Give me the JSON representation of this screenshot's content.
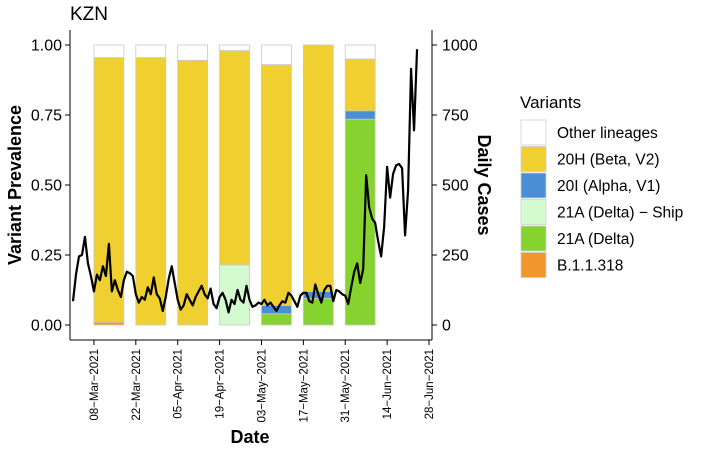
{
  "chart_data": {
    "type": "bar",
    "title": "KZN",
    "xlabel": "Date",
    "ylabel": "Variant Prevalence",
    "y2label": "Daily Cases",
    "ylim": [
      0,
      1
    ],
    "y2lim": [
      0,
      1000
    ],
    "yticks": [
      "0.00",
      "0.25",
      "0.50",
      "0.75",
      "1.00"
    ],
    "y2ticks": [
      "0",
      "250",
      "500",
      "750",
      "1000"
    ],
    "xlim": [
      "2021-02-28",
      "2021-06-29"
    ],
    "xticks": [
      "08−Mar−2021",
      "22−Mar−2021",
      "05−Apr−2021",
      "19−Apr−2021",
      "03−May−2021",
      "17−May−2021",
      "31−May−2021",
      "14−Jun−2021",
      "28−Jun−2021"
    ],
    "xtick_dates": [
      "2021-03-08",
      "2021-03-22",
      "2021-04-05",
      "2021-04-19",
      "2021-05-03",
      "2021-05-17",
      "2021-05-31",
      "2021-06-14",
      "2021-06-28"
    ],
    "legend_title": "Variants",
    "legend_position": "right",
    "series": [
      {
        "name": "Other lineages",
        "color": "#ffffff"
      },
      {
        "name": "20H (Beta, V2)",
        "color": "#f0cf30"
      },
      {
        "name": "20I (Alpha, V1)",
        "color": "#4a8fd6"
      },
      {
        "name": "21A (Delta) − Ship",
        "color": "#d4fbd0"
      },
      {
        "name": "21A (Delta)",
        "color": "#86d22f"
      },
      {
        "name": "B.1.1.318",
        "color": "#f2962e"
      }
    ],
    "bars": [
      {
        "week_start": "2021-03-08",
        "week_end": "2021-03-18",
        "segments": {
          "B.1.1.318": 0.01,
          "20H (Beta, V2)": 0.945,
          "Other lineages": 0.045
        }
      },
      {
        "week_start": "2021-03-22",
        "week_end": "2021-04-01",
        "segments": {
          "20H (Beta, V2)": 0.955,
          "Other lineages": 0.045
        }
      },
      {
        "week_start": "2021-04-05",
        "week_end": "2021-04-15",
        "segments": {
          "20H (Beta, V2)": 0.945,
          "Other lineages": 0.055
        }
      },
      {
        "week_start": "2021-04-19",
        "week_end": "2021-04-29",
        "segments": {
          "21A (Delta) − Ship": 0.215,
          "20H (Beta, V2)": 0.765,
          "Other lineages": 0.02
        }
      },
      {
        "week_start": "2021-05-03",
        "week_end": "2021-05-13",
        "segments": {
          "21A (Delta)": 0.04,
          "20I (Alpha, V1)": 0.03,
          "20H (Beta, V2)": 0.86,
          "Other lineages": 0.07
        }
      },
      {
        "week_start": "2021-05-17",
        "week_end": "2021-05-27",
        "segments": {
          "21A (Delta)": 0.095,
          "20I (Alpha, V1)": 0.025,
          "20H (Beta, V2)": 0.88
        }
      },
      {
        "week_start": "2021-05-31",
        "week_end": "2021-06-10",
        "segments": {
          "21A (Delta)": 0.735,
          "20I (Alpha, V1)": 0.03,
          "20H (Beta, V2)": 0.185,
          "Other lineages": 0.05
        }
      }
    ],
    "daily_cases": [
      [
        "2021-03-01",
        85
      ],
      [
        "2021-03-02",
        180
      ],
      [
        "2021-03-03",
        245
      ],
      [
        "2021-03-04",
        250
      ],
      [
        "2021-03-05",
        315
      ],
      [
        "2021-03-06",
        220
      ],
      [
        "2021-03-07",
        175
      ],
      [
        "2021-03-08",
        120
      ],
      [
        "2021-03-09",
        180
      ],
      [
        "2021-03-10",
        160
      ],
      [
        "2021-03-11",
        210
      ],
      [
        "2021-03-12",
        175
      ],
      [
        "2021-03-13",
        290
      ],
      [
        "2021-03-14",
        120
      ],
      [
        "2021-03-15",
        160
      ],
      [
        "2021-03-16",
        125
      ],
      [
        "2021-03-17",
        100
      ],
      [
        "2021-03-18",
        160
      ],
      [
        "2021-03-19",
        190
      ],
      [
        "2021-03-20",
        185
      ],
      [
        "2021-03-21",
        175
      ],
      [
        "2021-03-22",
        110
      ],
      [
        "2021-03-23",
        80
      ],
      [
        "2021-03-24",
        100
      ],
      [
        "2021-03-25",
        90
      ],
      [
        "2021-03-26",
        135
      ],
      [
        "2021-03-27",
        110
      ],
      [
        "2021-03-28",
        170
      ],
      [
        "2021-03-29",
        110
      ],
      [
        "2021-03-30",
        95
      ],
      [
        "2021-03-31",
        50
      ],
      [
        "2021-04-01",
        100
      ],
      [
        "2021-04-02",
        165
      ],
      [
        "2021-04-03",
        210
      ],
      [
        "2021-04-04",
        150
      ],
      [
        "2021-04-05",
        90
      ],
      [
        "2021-04-06",
        55
      ],
      [
        "2021-04-07",
        70
      ],
      [
        "2021-04-08",
        110
      ],
      [
        "2021-04-09",
        90
      ],
      [
        "2021-04-10",
        70
      ],
      [
        "2021-04-11",
        100
      ],
      [
        "2021-04-12",
        120
      ],
      [
        "2021-04-13",
        140
      ],
      [
        "2021-04-14",
        110
      ],
      [
        "2021-04-15",
        95
      ],
      [
        "2021-04-16",
        130
      ],
      [
        "2021-04-17",
        75
      ],
      [
        "2021-04-18",
        60
      ],
      [
        "2021-04-19",
        100
      ],
      [
        "2021-04-20",
        115
      ],
      [
        "2021-04-21",
        90
      ],
      [
        "2021-04-22",
        45
      ],
      [
        "2021-04-23",
        90
      ],
      [
        "2021-04-24",
        75
      ],
      [
        "2021-04-25",
        125
      ],
      [
        "2021-04-26",
        90
      ],
      [
        "2021-04-27",
        80
      ],
      [
        "2021-04-28",
        140
      ],
      [
        "2021-04-29",
        90
      ],
      [
        "2021-04-30",
        65
      ],
      [
        "2021-05-01",
        70
      ],
      [
        "2021-05-02",
        80
      ],
      [
        "2021-05-03",
        75
      ],
      [
        "2021-05-04",
        90
      ],
      [
        "2021-05-05",
        70
      ],
      [
        "2021-05-06",
        80
      ],
      [
        "2021-05-07",
        65
      ],
      [
        "2021-05-08",
        50
      ],
      [
        "2021-05-09",
        70
      ],
      [
        "2021-05-10",
        85
      ],
      [
        "2021-05-11",
        80
      ],
      [
        "2021-05-12",
        115
      ],
      [
        "2021-05-13",
        105
      ],
      [
        "2021-05-14",
        85
      ],
      [
        "2021-05-15",
        65
      ],
      [
        "2021-05-16",
        105
      ],
      [
        "2021-05-17",
        115
      ],
      [
        "2021-05-18",
        115
      ],
      [
        "2021-05-19",
        85
      ],
      [
        "2021-05-20",
        80
      ],
      [
        "2021-05-21",
        145
      ],
      [
        "2021-05-22",
        110
      ],
      [
        "2021-05-23",
        80
      ],
      [
        "2021-05-24",
        125
      ],
      [
        "2021-05-25",
        140
      ],
      [
        "2021-05-26",
        140
      ],
      [
        "2021-05-27",
        85
      ],
      [
        "2021-05-28",
        125
      ],
      [
        "2021-05-29",
        120
      ],
      [
        "2021-05-30",
        110
      ],
      [
        "2021-05-31",
        105
      ],
      [
        "2021-06-01",
        75
      ],
      [
        "2021-06-02",
        135
      ],
      [
        "2021-06-03",
        190
      ],
      [
        "2021-06-04",
        220
      ],
      [
        "2021-06-05",
        150
      ],
      [
        "2021-06-06",
        200
      ],
      [
        "2021-06-07",
        535
      ],
      [
        "2021-06-08",
        420
      ],
      [
        "2021-06-09",
        380
      ],
      [
        "2021-06-10",
        365
      ],
      [
        "2021-06-11",
        300
      ],
      [
        "2021-06-12",
        245
      ],
      [
        "2021-06-13",
        350
      ],
      [
        "2021-06-14",
        565
      ],
      [
        "2021-06-15",
        455
      ],
      [
        "2021-06-16",
        540
      ],
      [
        "2021-06-17",
        570
      ],
      [
        "2021-06-18",
        575
      ],
      [
        "2021-06-19",
        560
      ],
      [
        "2021-06-20",
        320
      ],
      [
        "2021-06-21",
        480
      ],
      [
        "2021-06-22",
        915
      ],
      [
        "2021-06-23",
        695
      ],
      [
        "2021-06-24",
        985
      ]
    ]
  }
}
